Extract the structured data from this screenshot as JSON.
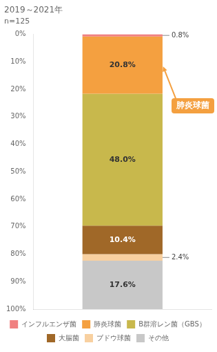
{
  "chart_data": {
    "type": "bar",
    "stacked": true,
    "title": "2019～2021年",
    "subtitle": "n=125",
    "categories": [
      null
    ],
    "series": [
      {
        "name": "インフルエンザ菌",
        "color": "#f08080",
        "values": [
          0.8
        ],
        "value_labels": [
          "0.8%"
        ]
      },
      {
        "name": "肺炎球菌",
        "color": "#f4a040",
        "values": [
          20.8
        ],
        "value_labels": [
          "20.8%"
        ]
      },
      {
        "name": "B群溶レン菌（GBS）",
        "color": "#c8b84c",
        "values": [
          48.0
        ],
        "value_labels": [
          "48.0%"
        ]
      },
      {
        "name": "大腸菌",
        "color": "#a06828",
        "values": [
          10.4
        ],
        "value_labels": [
          "10.4%"
        ]
      },
      {
        "name": "ブドウ球菌",
        "color": "#f8d0a0",
        "values": [
          2.4
        ],
        "value_labels": [
          "2.4%"
        ]
      },
      {
        "name": "その他",
        "color": "#c8c8c8",
        "values": [
          17.6
        ],
        "value_labels": [
          "17.6%"
        ]
      }
    ],
    "ylim": [
      100,
      0
    ],
    "yticks": [
      {
        "value": 0,
        "label": "0%"
      },
      {
        "value": 10,
        "label": "10%"
      },
      {
        "value": 20,
        "label": "20%"
      },
      {
        "value": 30,
        "label": "30%"
      },
      {
        "value": 40,
        "label": "40%"
      },
      {
        "value": 50,
        "label": "50%"
      },
      {
        "value": 60,
        "label": "60%"
      },
      {
        "value": 70,
        "label": "70%"
      },
      {
        "value": 80,
        "label": "80%"
      },
      {
        "value": 90,
        "label": "90%"
      },
      {
        "value": 100,
        "label": "100%"
      }
    ],
    "grid": false,
    "legend": "bottom",
    "data_labels": true,
    "tick_labels": "y",
    "annotations": [
      {
        "text": "肺炎球菌",
        "color": "#f4a040"
      }
    ]
  }
}
